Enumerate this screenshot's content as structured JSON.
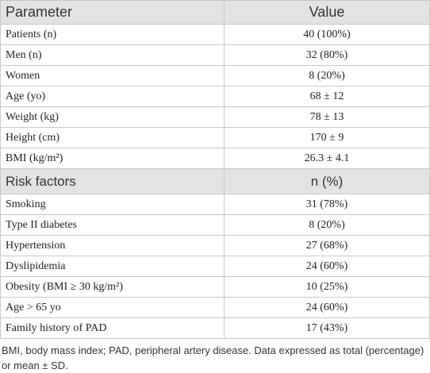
{
  "table": {
    "header": [
      "Parameter",
      "Value"
    ],
    "rows": [
      [
        "Patients (n)",
        "40 (100%)"
      ],
      [
        "Men (n)",
        "32 (80%)"
      ],
      [
        "Women",
        "8 (20%)"
      ],
      [
        "Age (yo)",
        "68 ± 12"
      ],
      [
        "Weight (kg)",
        "78 ± 13"
      ],
      [
        "Height (cm)",
        "170 ± 9"
      ],
      [
        "BMI (kg/m²)",
        "26.3 ± 4.1"
      ]
    ],
    "section_header": [
      "Risk factors",
      "n (%)"
    ],
    "section_rows": [
      [
        "Smoking",
        "31 (78%)"
      ],
      [
        "Type II diabetes",
        "8 (20%)"
      ],
      [
        "Hypertension",
        "27 (68%)"
      ],
      [
        "Dyslipidemia",
        "24 (60%)"
      ],
      [
        "Obesity (BMI ≥ 30 kg/m²)",
        "10 (25%)"
      ],
      [
        "Age > 65 yo",
        "24 (60%)"
      ],
      [
        "Family history of PAD",
        "17 (43%)"
      ]
    ]
  },
  "footnote": "BMI, body mass index; PAD, peripheral artery disease. Data expressed as total (percentage) or mean ± SD."
}
